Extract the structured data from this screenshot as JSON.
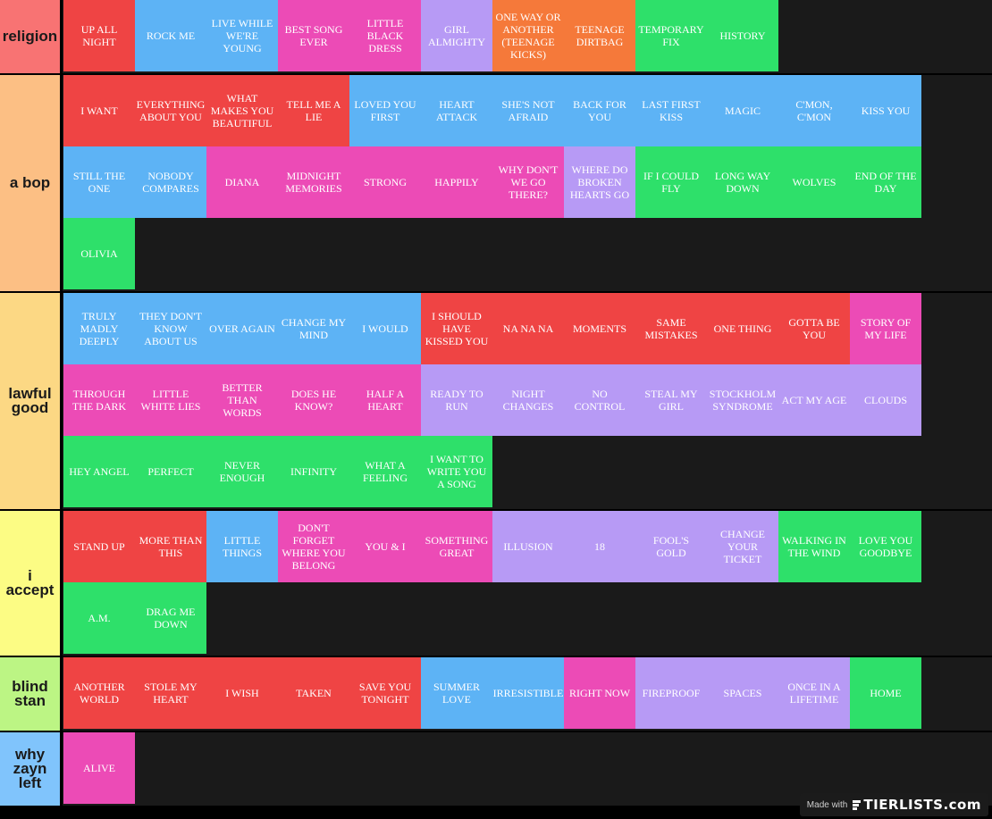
{
  "tiers": [
    {
      "label": "religion",
      "color": "#f87373",
      "items": [
        {
          "name": "UP ALL NIGHT",
          "color": "red"
        },
        {
          "name": "ROCK ME",
          "color": "blue"
        },
        {
          "name": "LIVE WHILE WE'RE YOUNG",
          "color": "blue"
        },
        {
          "name": "BEST SONG EVER",
          "color": "pink"
        },
        {
          "name": "LITTLE BLACK DRESS",
          "color": "pink"
        },
        {
          "name": "GIRL ALMIGHTY",
          "color": "lav"
        },
        {
          "name": "ONE WAY OR ANOTHER (TEENAGE KICKS)",
          "color": "orange"
        },
        {
          "name": "TEENAGE DIRTBAG",
          "color": "orange"
        },
        {
          "name": "TEMPORARY FIX",
          "color": "green"
        },
        {
          "name": "HISTORY",
          "color": "green"
        }
      ]
    },
    {
      "label": "a bop",
      "color": "#fcbf84",
      "items": [
        {
          "name": "I WANT",
          "color": "red"
        },
        {
          "name": "EVERYTHING ABOUT YOU",
          "color": "red"
        },
        {
          "name": "WHAT MAKES YOU BEAUTIFUL",
          "color": "red"
        },
        {
          "name": "TELL ME A LIE",
          "color": "red"
        },
        {
          "name": "LOVED YOU FIRST",
          "color": "blue"
        },
        {
          "name": "HEART ATTACK",
          "color": "blue"
        },
        {
          "name": "SHE'S NOT AFRAID",
          "color": "blue"
        },
        {
          "name": "BACK FOR YOU",
          "color": "blue"
        },
        {
          "name": "LAST FIRST KISS",
          "color": "blue"
        },
        {
          "name": "MAGIC",
          "color": "blue"
        },
        {
          "name": "C'MON, C'MON",
          "color": "blue"
        },
        {
          "name": "KISS YOU",
          "color": "blue"
        },
        {
          "name": "STILL THE ONE",
          "color": "blue"
        },
        {
          "name": "NOBODY COMPARES",
          "color": "blue"
        },
        {
          "name": "DIANA",
          "color": "pink"
        },
        {
          "name": "MIDNIGHT MEMORIES",
          "color": "pink"
        },
        {
          "name": "STRONG",
          "color": "pink"
        },
        {
          "name": "HAPPILY",
          "color": "pink"
        },
        {
          "name": "WHY DON'T WE GO THERE?",
          "color": "pink"
        },
        {
          "name": "WHERE DO BROKEN HEARTS GO",
          "color": "lav"
        },
        {
          "name": "IF I COULD FLY",
          "color": "green"
        },
        {
          "name": "LONG WAY DOWN",
          "color": "green"
        },
        {
          "name": "WOLVES",
          "color": "green"
        },
        {
          "name": "END OF THE DAY",
          "color": "green"
        },
        {
          "name": "OLIVIA",
          "color": "green"
        }
      ]
    },
    {
      "label": "lawful good",
      "color": "#fcd884",
      "items": [
        {
          "name": "TRULY MADLY DEEPLY",
          "color": "blue"
        },
        {
          "name": "THEY DON'T KNOW ABOUT US",
          "color": "blue"
        },
        {
          "name": "OVER AGAIN",
          "color": "blue"
        },
        {
          "name": "CHANGE MY MIND",
          "color": "blue"
        },
        {
          "name": "I WOULD",
          "color": "blue"
        },
        {
          "name": "I SHOULD HAVE KISSED YOU",
          "color": "red"
        },
        {
          "name": "NA NA NA",
          "color": "red"
        },
        {
          "name": "MOMENTS",
          "color": "red"
        },
        {
          "name": "SAME MISTAKES",
          "color": "red"
        },
        {
          "name": "ONE THING",
          "color": "red"
        },
        {
          "name": "GOTTA BE YOU",
          "color": "red"
        },
        {
          "name": "STORY OF MY LIFE",
          "color": "pink"
        },
        {
          "name": "THROUGH THE DARK",
          "color": "pink"
        },
        {
          "name": "LITTLE WHITE LIES",
          "color": "pink"
        },
        {
          "name": "BETTER THAN WORDS",
          "color": "pink"
        },
        {
          "name": "DOES HE KNOW?",
          "color": "pink"
        },
        {
          "name": "HALF A HEART",
          "color": "pink"
        },
        {
          "name": "READY TO RUN",
          "color": "lav"
        },
        {
          "name": "NIGHT CHANGES",
          "color": "lav"
        },
        {
          "name": "NO CONTROL",
          "color": "lav"
        },
        {
          "name": "STEAL MY GIRL",
          "color": "lav"
        },
        {
          "name": "STOCKHOLM SYNDROME",
          "color": "lav"
        },
        {
          "name": "ACT MY AGE",
          "color": "lav"
        },
        {
          "name": "CLOUDS",
          "color": "lav"
        },
        {
          "name": "HEY ANGEL",
          "color": "green"
        },
        {
          "name": "PERFECT",
          "color": "green"
        },
        {
          "name": "NEVER ENOUGH",
          "color": "green"
        },
        {
          "name": "INFINITY",
          "color": "green"
        },
        {
          "name": "WHAT A FEELING",
          "color": "green"
        },
        {
          "name": "I WANT TO WRITE YOU A SONG",
          "color": "green"
        }
      ]
    },
    {
      "label": "i accept",
      "color": "#fcfc84",
      "items": [
        {
          "name": "STAND UP",
          "color": "red"
        },
        {
          "name": "MORE THAN THIS",
          "color": "red"
        },
        {
          "name": "LITTLE THINGS",
          "color": "blue"
        },
        {
          "name": "DON'T FORGET WHERE YOU BELONG",
          "color": "pink"
        },
        {
          "name": "YOU & I",
          "color": "pink"
        },
        {
          "name": "SOMETHING GREAT",
          "color": "pink"
        },
        {
          "name": "ILLUSION",
          "color": "lav"
        },
        {
          "name": "18",
          "color": "lav"
        },
        {
          "name": "FOOL'S GOLD",
          "color": "lav"
        },
        {
          "name": "CHANGE YOUR TICKET",
          "color": "lav"
        },
        {
          "name": "WALKING IN THE WIND",
          "color": "green"
        },
        {
          "name": "LOVE YOU GOODBYE",
          "color": "green"
        },
        {
          "name": "A.M.",
          "color": "green"
        },
        {
          "name": "DRAG ME DOWN",
          "color": "green"
        }
      ]
    },
    {
      "label": "blind stan",
      "color": "#bcf584",
      "items": [
        {
          "name": "ANOTHER WORLD",
          "color": "red"
        },
        {
          "name": "STOLE MY HEART",
          "color": "red"
        },
        {
          "name": "I WISH",
          "color": "red"
        },
        {
          "name": "TAKEN",
          "color": "red"
        },
        {
          "name": "SAVE YOU TONIGHT",
          "color": "red"
        },
        {
          "name": "SUMMER LOVE",
          "color": "blue"
        },
        {
          "name": "IRRESISTIBLE",
          "color": "blue"
        },
        {
          "name": "RIGHT NOW",
          "color": "pink"
        },
        {
          "name": "FIREPROOF",
          "color": "lav"
        },
        {
          "name": "SPACES",
          "color": "lav"
        },
        {
          "name": "ONCE IN A LIFETIME",
          "color": "lav"
        },
        {
          "name": "HOME",
          "color": "green"
        }
      ]
    },
    {
      "label": "why zayn left",
      "color": "#80c4fc",
      "items": [
        {
          "name": "ALIVE",
          "color": "pink"
        }
      ]
    }
  ],
  "watermark": {
    "made_with": "Made with",
    "brand": "TIERLISTS.com"
  }
}
